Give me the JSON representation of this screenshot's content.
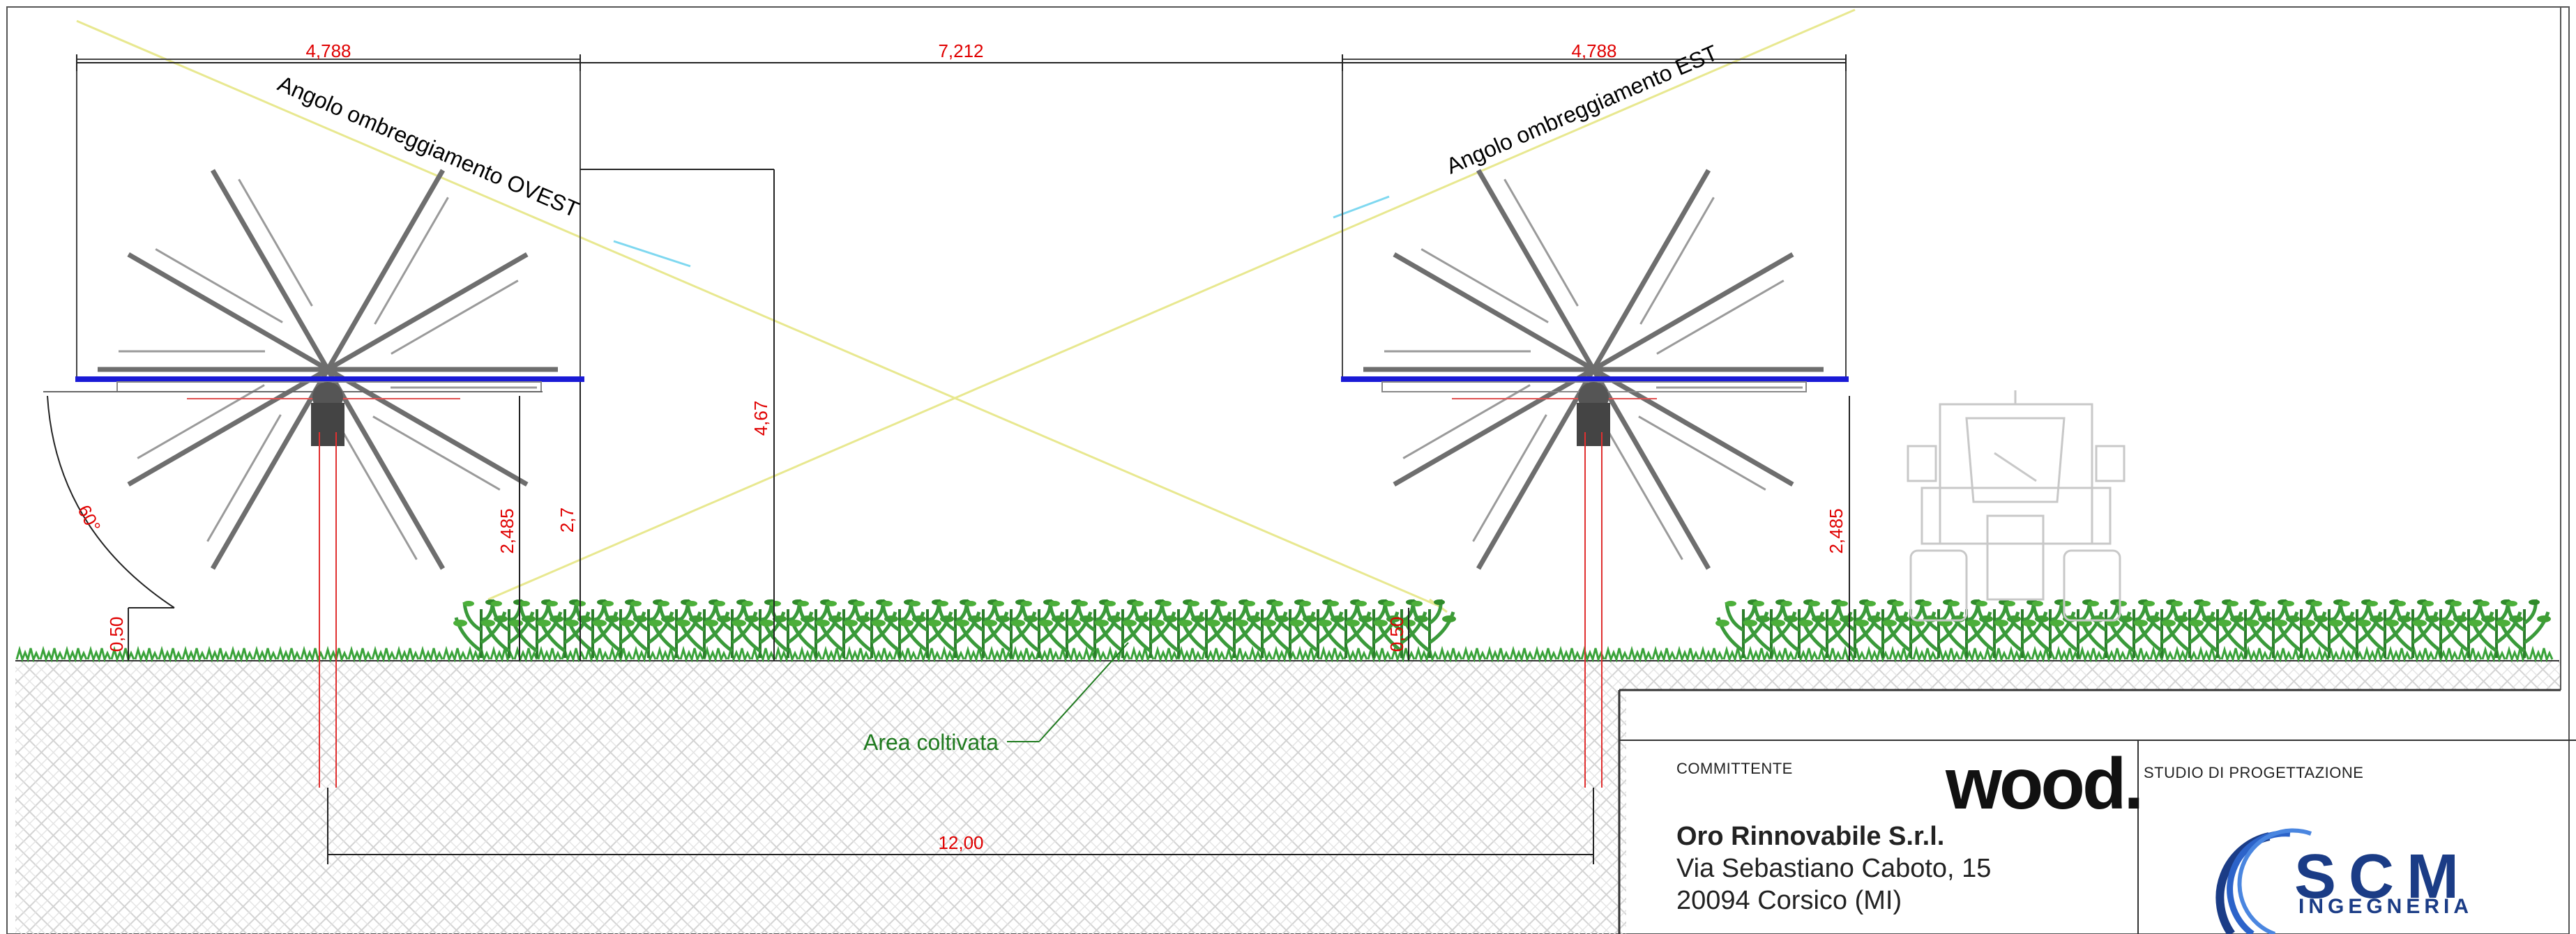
{
  "dimensions": {
    "left_panel_width": "4,788",
    "row_gap": "7,212",
    "right_panel_width": "4,788",
    "overall_height": "4,67",
    "panel_height_left": "2,485",
    "panel_height_left_max": "2,7",
    "panel_height_right": "2,485",
    "ground_clearance_left": "0,50",
    "ground_clearance_right": "0,50",
    "row_pitch": "12,00",
    "rotation_angle": "60°"
  },
  "labels": {
    "shade_angle_west": "Angolo ombreggiamento OVEST",
    "shade_angle_east": "Angolo ombreggiamento EST",
    "cultivated_area": "Area coltivata"
  },
  "title_block": {
    "client_label": "COMMITTENTE",
    "client_brand": "wood.",
    "client_name": "Oro Rinnovabile S.r.l.",
    "client_address_line1": "Via Sebastiano Caboto, 15",
    "client_address_line2": "20094 Corsico (MI)",
    "studio_label": "STUDIO DI PROGETTAZIONE",
    "studio_logo_main": "SCM",
    "studio_logo_sub": "INGEGNERIA"
  },
  "colors": {
    "dimension": "#e00000",
    "panel": "#1a1ad6",
    "structure": "#707070",
    "vegetation": "#2e8b2e",
    "shade_line": "#e6e68a",
    "logo_blue": "#1b3c86"
  }
}
